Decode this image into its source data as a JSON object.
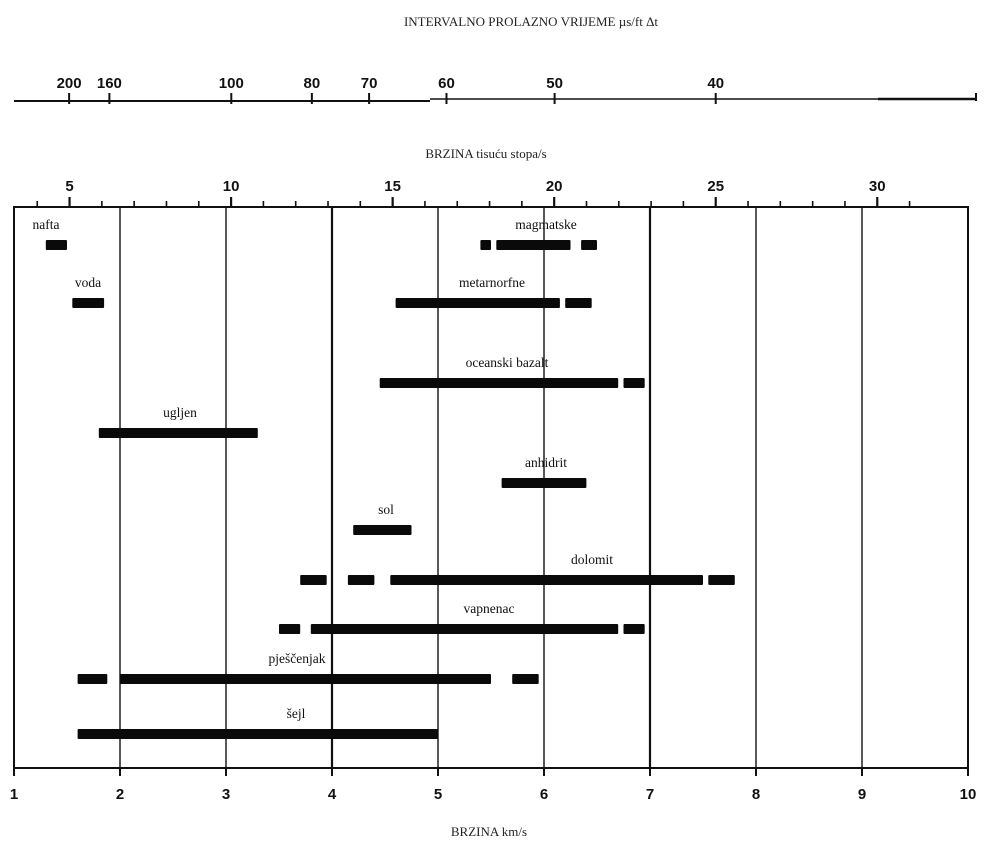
{
  "chart_data": {
    "type": "range-bar",
    "title_top": "INTERVALNO PROLAZNO VRIJEME  µs/ft Δt",
    "title_middle": "BRZINA tisuću stopa/s",
    "xlabel": "BRZINA km/s",
    "xlim_kms": [
      1,
      10
    ],
    "top_axis_ticks": [
      {
        "label": "200",
        "kms": 1.52
      },
      {
        "label": "160",
        "kms": 1.9
      },
      {
        "label": "100",
        "kms": 3.05
      },
      {
        "label": "80",
        "kms": 3.81
      },
      {
        "label": "70",
        "kms": 4.35
      },
      {
        "label": "60",
        "kms": 5.08
      },
      {
        "label": "50",
        "kms": 6.1
      },
      {
        "label": "40",
        "kms": 7.62
      }
    ],
    "middle_axis_ticks": [
      "5",
      "10",
      "15",
      "20",
      "25",
      "30"
    ],
    "bottom_axis_ticks": [
      "1",
      "2",
      "3",
      "4",
      "5",
      "6",
      "7",
      "8",
      "9",
      "10"
    ],
    "grid_kms": [
      2,
      3,
      4,
      5,
      6,
      7,
      8,
      9
    ],
    "rocks": [
      {
        "name": "nafta",
        "segments": [
          [
            1.3,
            1.5
          ]
        ]
      },
      {
        "name": "voda",
        "segments": [
          [
            1.55,
            1.85
          ]
        ]
      },
      {
        "name": "magmatske",
        "segments": [
          [
            5.4,
            5.5
          ],
          [
            5.55,
            6.25
          ],
          [
            6.35,
            6.5
          ]
        ]
      },
      {
        "name": "metarnorfne",
        "segments": [
          [
            4.6,
            6.15
          ],
          [
            6.2,
            6.45
          ]
        ]
      },
      {
        "name": "oceanski bazalt",
        "segments": [
          [
            4.45,
            6.7
          ],
          [
            6.75,
            6.95
          ]
        ]
      },
      {
        "name": "ugljen",
        "segments": [
          [
            1.8,
            3.3
          ]
        ]
      },
      {
        "name": "anhidrit",
        "segments": [
          [
            5.6,
            6.4
          ]
        ]
      },
      {
        "name": "sol",
        "segments": [
          [
            4.2,
            4.75
          ]
        ]
      },
      {
        "name": "dolomit",
        "segments": [
          [
            3.7,
            3.95
          ],
          [
            4.15,
            4.4
          ],
          [
            4.55,
            7.5
          ],
          [
            7.55,
            7.8
          ]
        ]
      },
      {
        "name": "vapnenac",
        "segments": [
          [
            3.5,
            3.7
          ],
          [
            3.8,
            6.7
          ],
          [
            6.75,
            6.95
          ]
        ]
      },
      {
        "name": "pješčenjak",
        "segments": [
          [
            1.6,
            1.88
          ],
          [
            2.0,
            5.5
          ],
          [
            5.7,
            5.95
          ]
        ]
      },
      {
        "name": "šejl",
        "segments": [
          [
            1.6,
            5.0
          ]
        ]
      }
    ]
  }
}
